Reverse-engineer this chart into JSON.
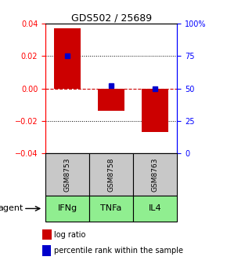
{
  "title": "GDS502 / 25689",
  "samples": [
    "GSM8753",
    "GSM8758",
    "GSM8763"
  ],
  "agents": [
    "IFNg",
    "TNFa",
    "IL4"
  ],
  "log_ratios": [
    0.037,
    -0.014,
    -0.027
  ],
  "percentile_ranks": [
    75.0,
    52.0,
    50.0
  ],
  "ylim_left": [
    -0.04,
    0.04
  ],
  "ylim_right": [
    0,
    100
  ],
  "yticks_left": [
    -0.04,
    -0.02,
    0.0,
    0.02,
    0.04
  ],
  "yticks_right": [
    0,
    25,
    50,
    75,
    100
  ],
  "ytick_labels_right": [
    "0",
    "25",
    "50",
    "75",
    "100%"
  ],
  "bar_color": "#cc0000",
  "dot_color": "#0000cc",
  "zero_line_color": "#cc0000",
  "cell_gray": "#c8c8c8",
  "cell_green": "#90ee90",
  "legend_bar_label": "log ratio",
  "legend_dot_label": "percentile rank within the sample",
  "agent_label": "agent",
  "background_color": "#ffffff"
}
